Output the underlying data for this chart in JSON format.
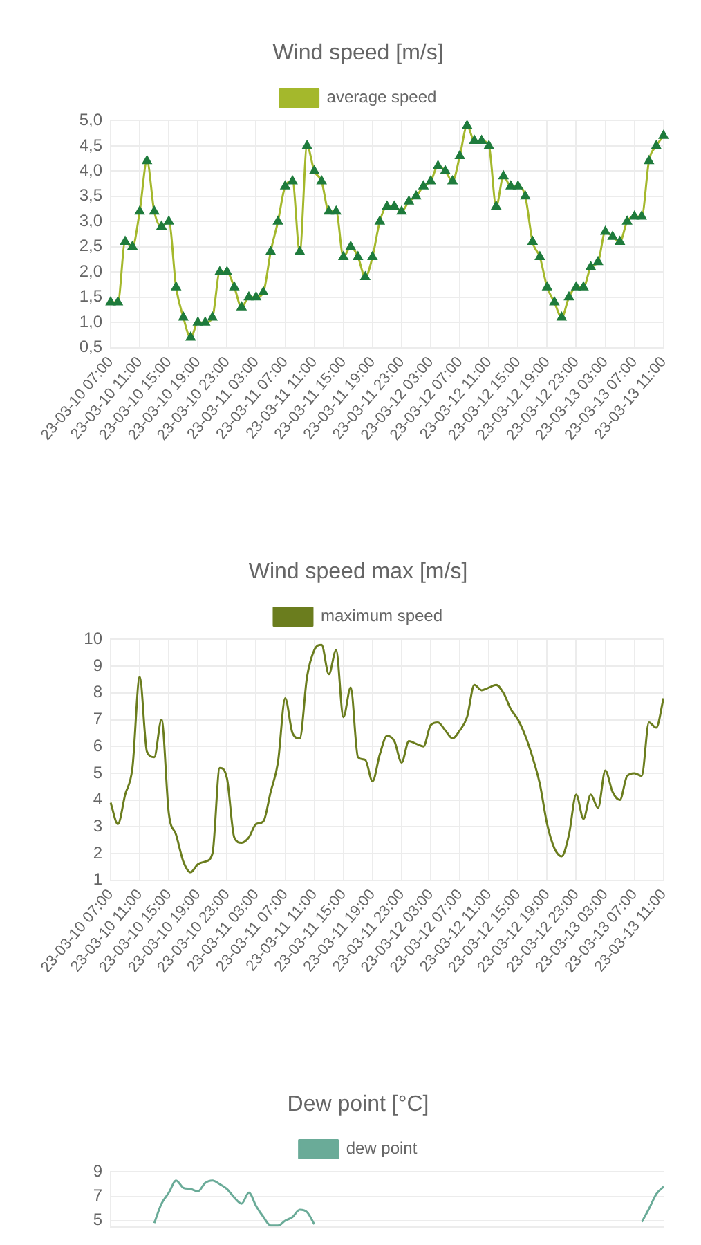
{
  "chart_data": [
    {
      "type": "line",
      "title": "Wind speed [m/s]",
      "categories": [
        "23-03-10 07:00",
        null,
        null,
        null,
        "23-03-10 11:00",
        null,
        null,
        null,
        "23-03-10 15:00",
        null,
        null,
        null,
        "23-03-10 19:00",
        null,
        null,
        null,
        "23-03-10 23:00",
        null,
        null,
        null,
        "23-03-11 03:00",
        null,
        null,
        null,
        "23-03-11 07:00",
        null,
        null,
        null,
        "23-03-11 11:00",
        null,
        null,
        null,
        "23-03-11 15:00",
        null,
        null,
        null,
        "23-03-11 19:00",
        null,
        null,
        null,
        "23-03-11 23:00",
        null,
        null,
        null,
        "23-03-12 03:00",
        null,
        null,
        null,
        "23-03-12 07:00",
        null,
        null,
        null,
        "23-03-12 11:00",
        null,
        null,
        null,
        "23-03-12 15:00",
        null,
        null,
        null,
        "23-03-12 19:00",
        null,
        null,
        null,
        "23-03-12 23:00",
        null,
        null,
        null,
        "23-03-13 03:00",
        null,
        null,
        null,
        "23-03-13 07:00",
        null,
        null,
        null,
        "23-03-13 11:00"
      ],
      "series": [
        {
          "name": "average speed",
          "color": "#a4b82c",
          "values": [
            1.4,
            1.4,
            2.6,
            2.5,
            3.2,
            4.2,
            3.2,
            2.9,
            3.0,
            1.7,
            1.1,
            0.7,
            1.0,
            1.0,
            1.1,
            2.0,
            2.0,
            1.7,
            1.3,
            1.5,
            1.5,
            1.6,
            2.4,
            3.0,
            3.7,
            3.8,
            2.4,
            4.5,
            4.0,
            3.8,
            3.2,
            3.2,
            2.3,
            2.5,
            2.3,
            1.9,
            2.3,
            3.0,
            3.3,
            3.3,
            3.2,
            3.4,
            3.5,
            3.7,
            3.8,
            4.1,
            4.0,
            3.8,
            4.3,
            4.9,
            4.6,
            4.6,
            4.5,
            3.3,
            3.9,
            3.7,
            3.7,
            3.5,
            2.6,
            2.3,
            1.7,
            1.4,
            1.1,
            1.5,
            1.7,
            1.7,
            2.1,
            2.2,
            2.8,
            2.7,
            2.6,
            3.0,
            3.1,
            3.1,
            4.2,
            4.5,
            4.7
          ]
        }
      ],
      "ylim": [
        0.5,
        5.0
      ],
      "yticks": [
        {
          "value": 0.5,
          "label": "0,5"
        },
        {
          "value": 1.0,
          "label": "1,0"
        },
        {
          "value": 1.5,
          "label": "1,5"
        },
        {
          "value": 2.0,
          "label": "2,0"
        },
        {
          "value": 2.5,
          "label": "2,5"
        },
        {
          "value": 3.0,
          "label": "3,0"
        },
        {
          "value": 3.5,
          "label": "3,5"
        },
        {
          "value": 4.0,
          "label": "4,0"
        },
        {
          "value": 4.5,
          "label": "4,5"
        },
        {
          "value": 5.0,
          "label": "5,0"
        }
      ],
      "grid": true,
      "legend": "top",
      "marker": "triangle",
      "line_style": "solid"
    },
    {
      "type": "line",
      "title": "Wind speed max [m/s]",
      "categories": [
        "23-03-10 07:00",
        null,
        null,
        null,
        "23-03-10 11:00",
        null,
        null,
        null,
        "23-03-10 15:00",
        null,
        null,
        null,
        "23-03-10 19:00",
        null,
        null,
        null,
        "23-03-10 23:00",
        null,
        null,
        null,
        "23-03-11 03:00",
        null,
        null,
        null,
        "23-03-11 07:00",
        null,
        null,
        null,
        "23-03-11 11:00",
        null,
        null,
        null,
        "23-03-11 15:00",
        null,
        null,
        null,
        "23-03-11 19:00",
        null,
        null,
        null,
        "23-03-11 23:00",
        null,
        null,
        null,
        "23-03-12 03:00",
        null,
        null,
        null,
        "23-03-12 07:00",
        null,
        null,
        null,
        "23-03-12 11:00",
        null,
        null,
        null,
        "23-03-12 15:00",
        null,
        null,
        null,
        "23-03-12 19:00",
        null,
        null,
        null,
        "23-03-12 23:00",
        null,
        null,
        null,
        "23-03-13 03:00",
        null,
        null,
        null,
        "23-03-13 07:00",
        null,
        null,
        null,
        "23-03-13 11:00"
      ],
      "series": [
        {
          "name": "maximum speed",
          "color": "#6b7d1e",
          "values": [
            3.9,
            3.1,
            4.2,
            5.2,
            8.6,
            5.8,
            5.6,
            7.0,
            3.5,
            2.7,
            1.7,
            1.3,
            1.6,
            1.7,
            2.0,
            5.2,
            4.8,
            2.6,
            2.4,
            2.6,
            3.1,
            3.2,
            4.3,
            5.4,
            7.8,
            6.5,
            6.3,
            8.6,
            9.6,
            9.8,
            8.7,
            9.6,
            7.1,
            8.2,
            5.6,
            5.5,
            4.7,
            5.7,
            6.4,
            6.2,
            5.4,
            6.2,
            6.1,
            6.0,
            6.8,
            6.9,
            6.6,
            6.3,
            6.6,
            7.1,
            8.3,
            8.1,
            8.2,
            8.3,
            8.0,
            7.4,
            7.0,
            6.4,
            5.6,
            4.6,
            3.1,
            2.2,
            1.9,
            2.7,
            4.2,
            3.3,
            4.2,
            3.7,
            5.1,
            4.3,
            4.0,
            4.9,
            5.0,
            4.9,
            6.9,
            6.7,
            7.8
          ]
        }
      ],
      "ylim": [
        1,
        10
      ],
      "yticks": [
        1,
        2,
        3,
        4,
        5,
        6,
        7,
        8,
        9,
        10
      ],
      "grid": true,
      "legend": "top",
      "marker": "none",
      "line_style": "solid"
    },
    {
      "type": "line",
      "title": "Dew point [°C]",
      "categories": [
        null,
        null,
        null,
        null,
        null,
        null,
        null,
        null,
        null,
        null,
        null,
        null,
        null,
        null,
        null,
        null,
        null,
        null,
        null,
        null,
        null,
        null,
        null,
        null,
        null,
        null,
        null,
        null,
        null,
        null,
        null,
        null,
        null,
        null,
        null,
        null,
        null,
        null,
        null,
        null,
        null,
        null,
        null,
        null,
        null,
        null,
        null,
        null,
        null,
        null,
        null,
        null,
        null,
        null,
        null,
        null,
        null,
        null,
        null,
        null,
        null,
        null,
        null,
        null,
        null,
        null,
        null,
        null,
        null,
        null,
        null,
        null,
        null,
        null,
        null,
        null,
        null
      ],
      "series": [
        {
          "name": "dew point",
          "color": "#6aab98",
          "values": [
            null,
            null,
            null,
            null,
            null,
            null,
            4.8,
            6.4,
            7.3,
            8.3,
            7.7,
            7.6,
            7.4,
            8.1,
            8.3,
            8.0,
            7.6,
            6.9,
            6.4,
            7.3,
            6.2,
            5.3,
            4.6,
            4.6,
            5.0,
            5.3,
            5.9,
            5.7,
            4.7,
            null,
            null,
            null,
            null,
            null,
            null,
            null,
            null,
            null,
            null,
            null,
            null,
            null,
            null,
            null,
            null,
            null,
            null,
            null,
            null,
            null,
            null,
            null,
            null,
            null,
            null,
            null,
            null,
            null,
            null,
            null,
            null,
            null,
            null,
            null,
            null,
            null,
            null,
            null,
            null,
            null,
            null,
            null,
            null,
            null,
            null,
            null,
            null
          ]
        },
        {
          "color": "#6aab98",
          "values": [
            null,
            null,
            null,
            null,
            null,
            null,
            null,
            null,
            null,
            null,
            null,
            null,
            null,
            null,
            null,
            null,
            null,
            null,
            null,
            null,
            null,
            null,
            null,
            null,
            null,
            null,
            null,
            null,
            null,
            null,
            null,
            null,
            null,
            null,
            null,
            null,
            null,
            null,
            null,
            null,
            null,
            null,
            null,
            null,
            null,
            null,
            null,
            null,
            null,
            null,
            null,
            null,
            null,
            null,
            null,
            null,
            null,
            null,
            null,
            null,
            null,
            null,
            null,
            null,
            null,
            null,
            null,
            null,
            null,
            null,
            null,
            null,
            null,
            4.9,
            6.0,
            7.2,
            7.8
          ]
        }
      ],
      "ylim": [
        4.5,
        9
      ],
      "yticks": [
        5,
        7,
        9
      ],
      "grid": "y",
      "legend": "top",
      "marker": "none",
      "line_style": "solid",
      "tick_labels": "y"
    }
  ]
}
